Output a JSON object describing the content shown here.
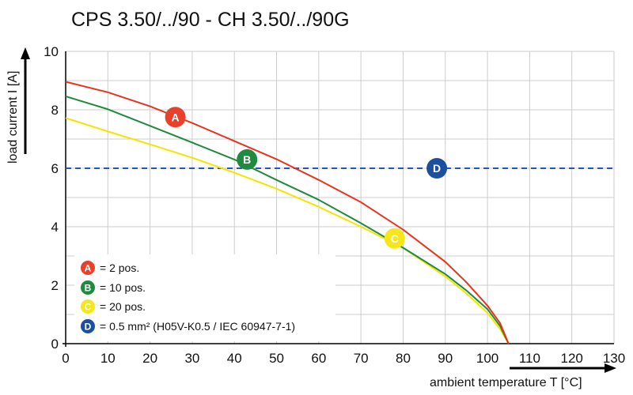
{
  "chart_data": {
    "type": "line",
    "title": "CPS 3.50/../90 - CH 3.50/../90G",
    "xlabel": "ambient temperature T [°C]",
    "ylabel": "load current I [A]",
    "xlim": [
      0,
      130
    ],
    "ylim": [
      0,
      10
    ],
    "xticks": [
      0,
      10,
      20,
      30,
      40,
      50,
      60,
      70,
      80,
      90,
      100,
      110,
      120,
      130
    ],
    "yticks": [
      0,
      2,
      4,
      6,
      8,
      10
    ],
    "grid": true,
    "legend_position": "bottom-left",
    "series": [
      {
        "name": "= 2 pos.",
        "marker": "A",
        "color": "#e8341e",
        "marker_color": "#e8402b",
        "line_style": "solid",
        "points": [
          [
            0,
            8.96
          ],
          [
            10,
            8.6
          ],
          [
            20,
            8.12
          ],
          [
            30,
            7.55
          ],
          [
            40,
            6.93
          ],
          [
            50,
            6.31
          ],
          [
            60,
            5.6
          ],
          [
            70,
            4.84
          ],
          [
            80,
            3.9
          ],
          [
            90,
            2.8
          ],
          [
            95,
            2.1
          ],
          [
            100,
            1.3
          ],
          [
            103,
            0.7
          ],
          [
            105,
            0
          ]
        ],
        "marker_at": [
          26,
          7.75
        ]
      },
      {
        "name": "= 10 pos.",
        "marker": "B",
        "color": "#1f8a3c",
        "marker_color": "#1f8a40",
        "line_style": "solid",
        "points": [
          [
            0,
            8.46
          ],
          [
            10,
            8.02
          ],
          [
            20,
            7.45
          ],
          [
            30,
            6.88
          ],
          [
            40,
            6.3
          ],
          [
            50,
            5.6
          ],
          [
            60,
            4.92
          ],
          [
            70,
            4.12
          ],
          [
            80,
            3.28
          ],
          [
            90,
            2.38
          ],
          [
            95,
            1.82
          ],
          [
            100,
            1.18
          ],
          [
            103,
            0.6
          ],
          [
            105,
            0
          ]
        ],
        "marker_at": [
          43,
          6.3
        ]
      },
      {
        "name": "= 20 pos.",
        "marker": "C",
        "color": "#f5e400",
        "marker_color": "#f6e61a",
        "line_style": "solid",
        "points": [
          [
            0,
            7.72
          ],
          [
            10,
            7.26
          ],
          [
            20,
            6.82
          ],
          [
            30,
            6.36
          ],
          [
            40,
            5.85
          ],
          [
            50,
            5.3
          ],
          [
            60,
            4.68
          ],
          [
            70,
            4.0
          ],
          [
            80,
            3.28
          ],
          [
            90,
            2.3
          ],
          [
            95,
            1.72
          ],
          [
            100,
            1.05
          ],
          [
            103,
            0.5
          ],
          [
            105,
            0
          ]
        ],
        "marker_at": [
          78,
          3.6
        ]
      },
      {
        "name": "= 0.5 mm² (H05V-K0.5 / IEC 60947-7-1)",
        "marker": "D",
        "color": "#1e56c4",
        "marker_color": "#1c4f9c",
        "line_style": "dashed",
        "points": [
          [
            0,
            6
          ],
          [
            130,
            6
          ]
        ],
        "marker_at": [
          88,
          6
        ]
      }
    ]
  }
}
